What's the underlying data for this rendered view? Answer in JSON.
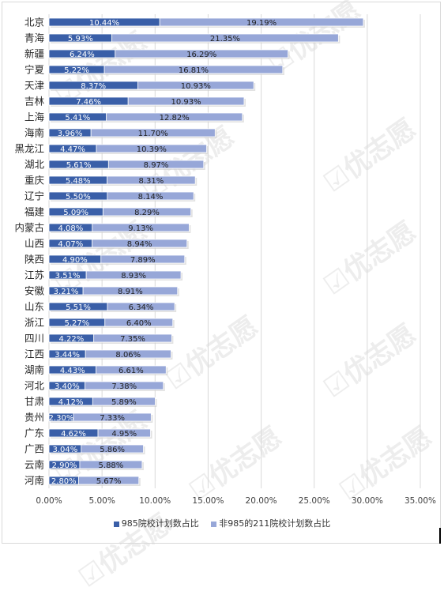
{
  "chart_data": {
    "type": "bar",
    "orientation": "horizontal",
    "stacked": true,
    "categories": [
      "北京",
      "青海",
      "新疆",
      "宁夏",
      "天津",
      "吉林",
      "上海",
      "海南",
      "黑龙江",
      "湖北",
      "重庆",
      "辽宁",
      "福建",
      "内蒙古",
      "山西",
      "陕西",
      "江苏",
      "安徽",
      "山东",
      "浙江",
      "四川",
      "江西",
      "湖南",
      "河北",
      "甘肃",
      "贵州",
      "广东",
      "广西",
      "云南",
      "河南"
    ],
    "series": [
      {
        "name": "985院校计划数占比",
        "color": "#3a5fa8",
        "values": [
          10.44,
          5.93,
          6.24,
          5.22,
          8.37,
          7.46,
          5.41,
          3.96,
          4.47,
          5.61,
          5.48,
          5.5,
          5.09,
          4.08,
          4.07,
          4.9,
          3.51,
          3.21,
          5.51,
          5.27,
          4.22,
          3.44,
          4.43,
          3.4,
          4.12,
          2.3,
          4.62,
          3.04,
          2.9,
          2.8
        ],
        "labels": [
          "10.44%",
          "5.93%",
          "6.24%",
          "5.22%",
          "8.37%",
          "7.46%",
          "5.41%",
          "3.96%",
          "4.47%",
          "5.61%",
          "5.48%",
          "5.50%",
          "5.09%",
          "4.08%",
          "4.07%",
          "4.90%",
          "3.51%",
          "3.21%",
          "5.51%",
          "5.27%",
          "4.22%",
          "3.44%",
          "4.43%",
          "3.40%",
          "4.12%",
          "2.30%",
          "4.62%",
          "3.04%",
          "2.90%",
          "2.80%"
        ]
      },
      {
        "name": "非985的211院校计划数占比",
        "color": "#97a7d8",
        "values": [
          19.19,
          21.35,
          16.29,
          16.81,
          10.93,
          10.93,
          12.82,
          11.7,
          10.39,
          8.97,
          8.31,
          8.14,
          8.29,
          9.13,
          8.94,
          7.89,
          8.93,
          8.91,
          6.34,
          6.4,
          7.35,
          8.06,
          6.61,
          7.38,
          5.89,
          7.33,
          4.95,
          5.86,
          5.88,
          5.67
        ],
        "labels": [
          "19.19%",
          "21.35%",
          "16.29%",
          "16.81%",
          "10.93%",
          "10.93%",
          "12.82%",
          "11.70%",
          "10.39%",
          "8.97%",
          "8.31%",
          "8.14%",
          "8.29%",
          "9.13%",
          "8.94%",
          "7.89%",
          "8.93%",
          "8.91%",
          "6.34%",
          "6.40%",
          "7.35%",
          "8.06%",
          "6.61%",
          "7.38%",
          "5.89%",
          "7.33%",
          "4.95%",
          "5.86%",
          "5.88%",
          "5.67%"
        ]
      }
    ],
    "xlim": [
      0,
      35
    ],
    "xticks": [
      "0.00%",
      "5.00%",
      "10.00%",
      "15.00%",
      "20.00%",
      "25.00%",
      "30.00%",
      "35.00%"
    ],
    "grid": true,
    "legend": "bottom"
  },
  "watermark": "优志愿"
}
